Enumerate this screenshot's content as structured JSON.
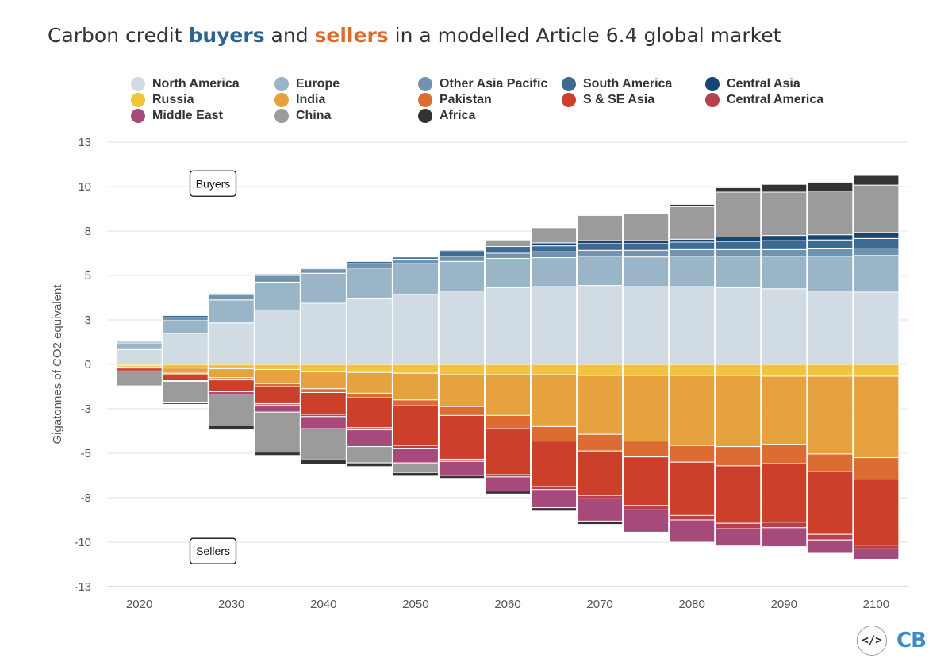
{
  "title": {
    "prefix": "Carbon credit ",
    "buyers": "buyers",
    "middle": " and ",
    "sellers": "sellers",
    "suffix": " in a modelled Article 6.4 global market"
  },
  "logo": {
    "code_icon": "code-icon",
    "text": "CB"
  },
  "chart_data": {
    "type": "bar",
    "stacked": true,
    "grid": true,
    "legend_position": "top",
    "ylabel": "Gigatonnes of CO2 equivalent",
    "xlabel": "",
    "yticks": [
      13,
      10,
      8,
      5,
      3,
      0,
      -3,
      -5,
      -8,
      -10,
      -13
    ],
    "ylim": [
      -13,
      13
    ],
    "xticks": [
      2020,
      2030,
      2040,
      2050,
      2060,
      2070,
      2080,
      2090,
      2100
    ],
    "x": [
      2020,
      2025,
      2030,
      2035,
      2040,
      2045,
      2050,
      2055,
      2060,
      2065,
      2070,
      2075,
      2080,
      2085,
      2090,
      2095,
      2100
    ],
    "x_range": [
      2016.5,
      2103.5
    ],
    "annotations": [
      {
        "text": "Buyers",
        "x": 2028,
        "y": 10.2
      },
      {
        "text": "Sellers",
        "x": 2028,
        "y": -10.6
      }
    ],
    "legend": [
      {
        "name": "North America",
        "color": "#d0dbe4"
      },
      {
        "name": "Europe",
        "color": "#9ab4c8"
      },
      {
        "name": "Other Asia Pacific",
        "color": "#7093af"
      },
      {
        "name": "South America",
        "color": "#3c6a93"
      },
      {
        "name": "Central Asia",
        "color": "#184673"
      },
      {
        "name": "Russia",
        "color": "#f0c53d"
      },
      {
        "name": "India",
        "color": "#e5a23e"
      },
      {
        "name": "Pakistan",
        "color": "#dd6c33"
      },
      {
        "name": "S & SE Asia",
        "color": "#cc3f2b"
      },
      {
        "name": "Central America",
        "color": "#b8404d"
      },
      {
        "name": "Middle East",
        "color": "#a64a7b"
      },
      {
        "name": "China",
        "color": "#9b9b9b"
      },
      {
        "name": "Africa",
        "color": "#333333"
      }
    ],
    "series": [
      {
        "name": "North America",
        "side": "buyers",
        "values": [
          1.0,
          2.1,
          2.8,
          3.45,
          3.75,
          3.95,
          4.15,
          4.3,
          4.45,
          4.5,
          4.55,
          4.5,
          4.5,
          4.45,
          4.4,
          4.3,
          4.25
        ]
      },
      {
        "name": "Europe",
        "side": "buyers",
        "values": [
          0.45,
          0.85,
          1.1,
          1.25,
          1.4,
          1.55,
          1.65,
          1.65,
          1.7,
          1.7,
          1.75,
          1.75,
          1.8,
          1.85,
          1.9,
          2.0,
          2.1
        ]
      },
      {
        "name": "Other Asia Pacific",
        "side": "buyers",
        "values": [
          0.1,
          0.15,
          0.25,
          0.3,
          0.3,
          0.3,
          0.3,
          0.35,
          0.35,
          0.4,
          0.4,
          0.45,
          0.45,
          0.45,
          0.45,
          0.5,
          0.5
        ]
      },
      {
        "name": "South America",
        "side": "buyers",
        "values": [
          0.05,
          0.1,
          0.05,
          0.1,
          0.1,
          0.15,
          0.15,
          0.3,
          0.35,
          0.4,
          0.45,
          0.45,
          0.5,
          0.55,
          0.6,
          0.6,
          0.65
        ]
      },
      {
        "name": "Central Asia",
        "side": "buyers",
        "values": [
          0.0,
          0.0,
          0.0,
          0.05,
          0.05,
          0.05,
          0.05,
          0.1,
          0.1,
          0.2,
          0.2,
          0.2,
          0.2,
          0.3,
          0.35,
          0.35,
          0.4
        ]
      },
      {
        "name": "China",
        "side": "buyers",
        "values": [
          0.0,
          0.0,
          0.0,
          0.0,
          0.0,
          0.0,
          0.0,
          0.0,
          0.45,
          0.95,
          1.35,
          1.45,
          1.65,
          2.15,
          2.05,
          2.05,
          2.2
        ]
      },
      {
        "name": "Africa",
        "side": "buyers",
        "values": [
          0.0,
          0.0,
          0.0,
          0.0,
          0.0,
          0.0,
          0.0,
          0.0,
          0.0,
          0.0,
          0.0,
          0.0,
          0.1,
          0.2,
          0.4,
          0.5,
          0.65
        ]
      },
      {
        "name": "Russia",
        "side": "sellers",
        "values": [
          0.1,
          0.25,
          0.3,
          0.35,
          0.5,
          0.55,
          0.6,
          0.7,
          0.7,
          0.7,
          0.75,
          0.75,
          0.75,
          0.75,
          0.8,
          0.8,
          0.8
        ]
      },
      {
        "name": "India",
        "side": "sellers",
        "values": [
          0.1,
          0.35,
          0.6,
          0.95,
          1.15,
          1.4,
          1.8,
          2.15,
          2.6,
          3.1,
          3.4,
          3.7,
          3.9,
          3.95,
          3.8,
          4.25,
          4.5
        ]
      },
      {
        "name": "Pakistan",
        "side": "sellers",
        "values": [
          0.05,
          0.1,
          0.15,
          0.2,
          0.25,
          0.3,
          0.4,
          0.45,
          0.6,
          0.65,
          0.75,
          0.8,
          0.95,
          1.15,
          1.1,
          1.2,
          1.45
        ]
      },
      {
        "name": "S & SE Asia",
        "side": "sellers",
        "values": [
          0.2,
          0.4,
          0.75,
          1.15,
          1.35,
          1.6,
          1.85,
          2.1,
          2.55,
          2.8,
          2.95,
          3.1,
          3.2,
          3.3,
          3.4,
          3.4,
          3.45
        ]
      },
      {
        "name": "Central America",
        "side": "sellers",
        "values": [
          0.0,
          0.0,
          0.05,
          0.1,
          0.1,
          0.1,
          0.15,
          0.15,
          0.15,
          0.2,
          0.2,
          0.2,
          0.2,
          0.25,
          0.25,
          0.25,
          0.25
        ]
      },
      {
        "name": "Middle East",
        "side": "sellers",
        "values": [
          0.0,
          0.05,
          0.2,
          0.4,
          0.55,
          0.75,
          0.85,
          0.95,
          0.95,
          1.0,
          1.0,
          1.0,
          1.0,
          0.85,
          0.95,
          0.85,
          0.7
        ]
      },
      {
        "name": "China",
        "side": "sellers",
        "values": [
          1.0,
          1.45,
          1.7,
          1.8,
          1.55,
          0.95,
          0.65,
          0.0,
          0.0,
          0.0,
          0.0,
          0.0,
          0.0,
          0.0,
          0.0,
          0.0,
          0.0
        ]
      },
      {
        "name": "Africa",
        "side": "sellers",
        "values": [
          0.0,
          0.1,
          0.2,
          0.2,
          0.3,
          0.25,
          0.25,
          0.2,
          0.2,
          0.15,
          0.15,
          0.0,
          0.0,
          0.0,
          0.0,
          0.0,
          0.0
        ]
      }
    ]
  }
}
